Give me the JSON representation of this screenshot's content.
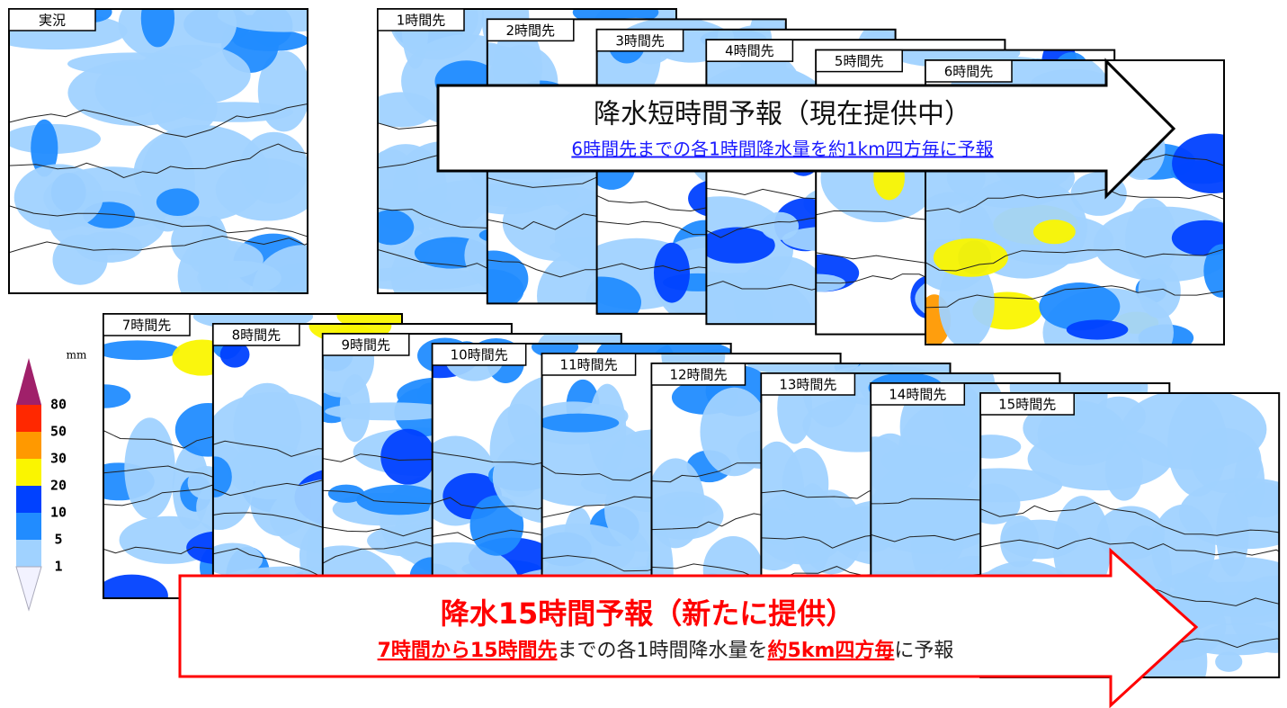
{
  "observed": {
    "label": "実況"
  },
  "panels": [
    {
      "label": "1時間先"
    },
    {
      "label": "2時間先"
    },
    {
      "label": "3時間先"
    },
    {
      "label": "4時間先"
    },
    {
      "label": "5時間先"
    },
    {
      "label": "6時間先"
    },
    {
      "label": "7時間先"
    },
    {
      "label": "8時間先"
    },
    {
      "label": "9時間先"
    },
    {
      "label": "10時間先"
    },
    {
      "label": "11時間先"
    },
    {
      "label": "12時間先"
    },
    {
      "label": "13時間先"
    },
    {
      "label": "14時間先"
    },
    {
      "label": "15時間先"
    }
  ],
  "short_forecast": {
    "title": "降水短時間予報（現在提供中）",
    "subtitle": "6時間先までの各1時間降水量を約1km四方毎に予報"
  },
  "long_forecast": {
    "title": "降水15時間予報（新たに提供）",
    "subtitle_parts": [
      {
        "text": "7時間から15時間先",
        "emphasis": true
      },
      {
        "text": "までの各1時間降水量を",
        "emphasis": false
      },
      {
        "text": "約5km四方毎",
        "emphasis": true
      },
      {
        "text": "に予報",
        "emphasis": false
      }
    ]
  },
  "legend": {
    "unit": "mm",
    "labels": [
      80,
      50,
      30,
      20,
      10,
      5,
      1
    ],
    "colors": [
      "#a0206a",
      "#ff2800",
      "#ff9900",
      "#faf500",
      "#0041ff",
      "#218cff",
      "#a0d2ff",
      "#f2f2ff"
    ]
  }
}
